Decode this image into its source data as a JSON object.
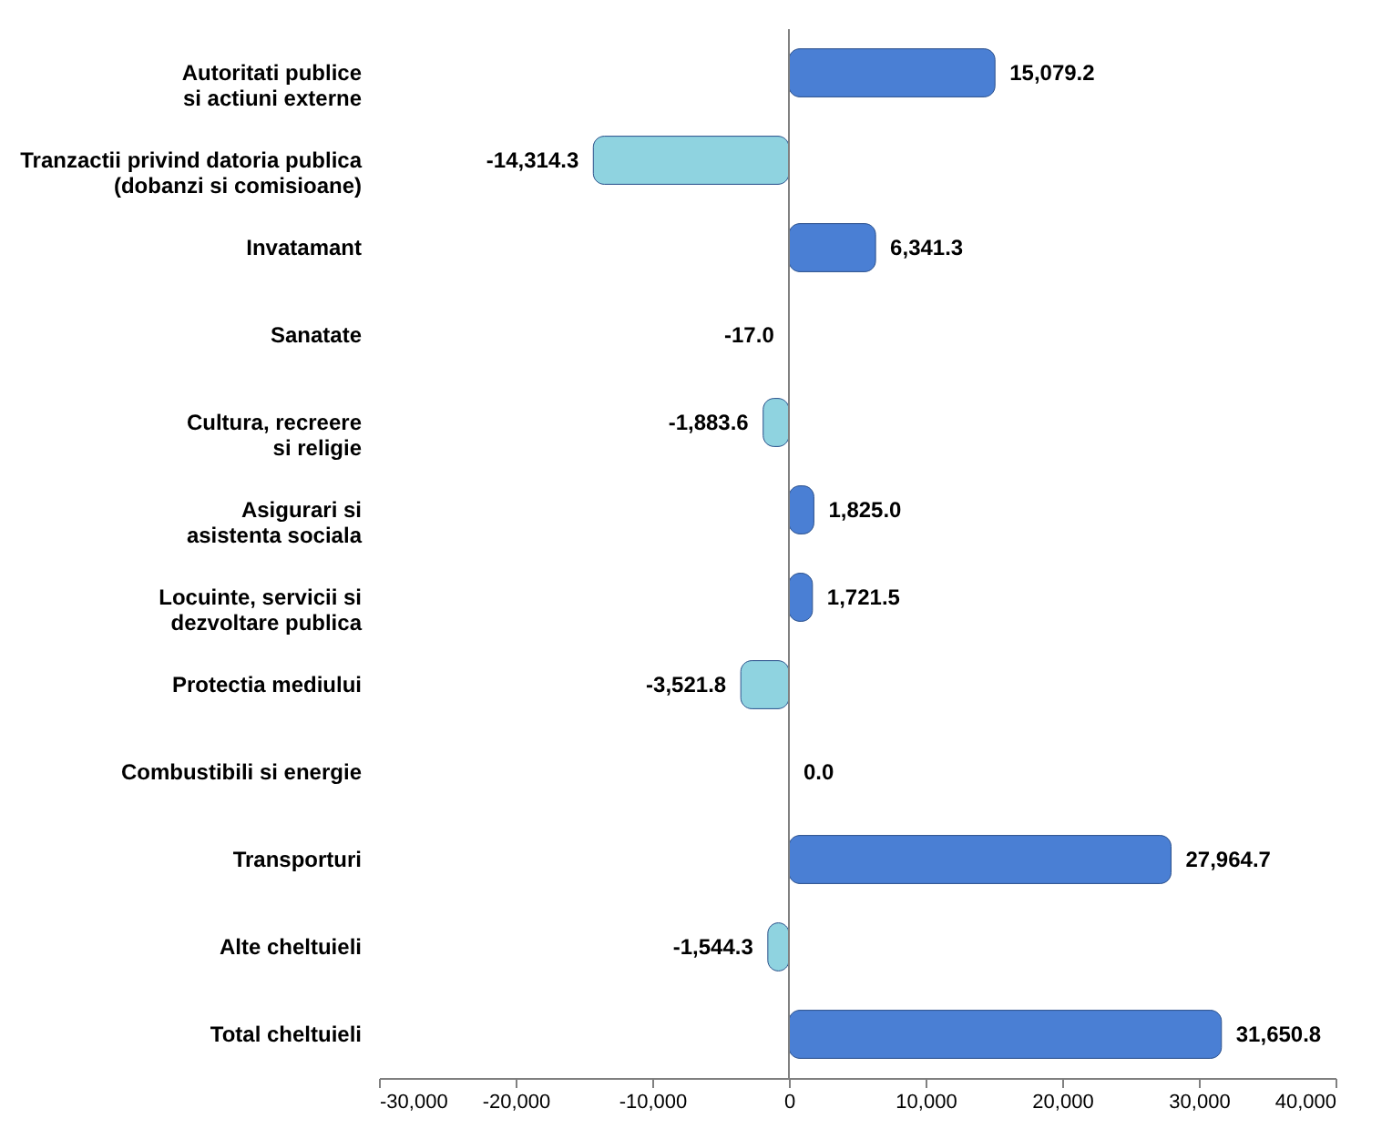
{
  "chart_data": {
    "type": "bar",
    "orientation": "horizontal",
    "categories": [
      "Autoritati publice\nsi actiuni externe",
      "Tranzactii privind datoria publica\n(dobanzi si comisioane)",
      "Invatamant",
      "Sanatate",
      "Cultura, recreere\nsi religie",
      "Asigurari si\nasistenta sociala",
      "Locuinte, servicii si\ndezvoltare publica",
      "Protectia mediului",
      "Combustibili si energie",
      "Transporturi",
      "Alte cheltuieli",
      "Total cheltuieli"
    ],
    "values": [
      15079.2,
      -14314.3,
      6341.3,
      -17.0,
      -1883.6,
      1825.0,
      1721.5,
      -3521.8,
      0.0,
      27964.7,
      -1544.3,
      31650.8
    ],
    "value_labels": [
      "15,079.2",
      "-14,314.3",
      "6,341.3",
      "-17.0",
      "-1,883.6",
      "1,825.0",
      "1,721.5",
      "-3,521.8",
      "0.0",
      "27,964.7",
      "-1,544.3",
      "31,650.8"
    ],
    "colors": [
      "#4a7fd4",
      "#8fd3e0",
      "#4a7fd4",
      "#5f8fa0",
      "#8fd3e0",
      "#4a7fd4",
      "#4a7fd4",
      "#8fd3e0",
      "#3a5f9a",
      "#4a7fd4",
      "#8fd3e0",
      "#4a7fd4"
    ],
    "xlim": [
      -30000,
      40000
    ],
    "xticks": [
      {
        "value": -30000,
        "label": "-30,000"
      },
      {
        "value": -20000,
        "label": "-20,000"
      },
      {
        "value": -10000,
        "label": "-10,000"
      },
      0,
      {
        "value": 10000,
        "label": "10,000"
      },
      {
        "value": 20000,
        "label": "20,000"
      },
      {
        "value": 30000,
        "label": "30,000"
      },
      {
        "value": 40000,
        "label": "40,000"
      }
    ],
    "ref_lines": [
      {
        "axis": "x",
        "value": 0,
        "color": "#808080"
      }
    ],
    "grid": false
  }
}
